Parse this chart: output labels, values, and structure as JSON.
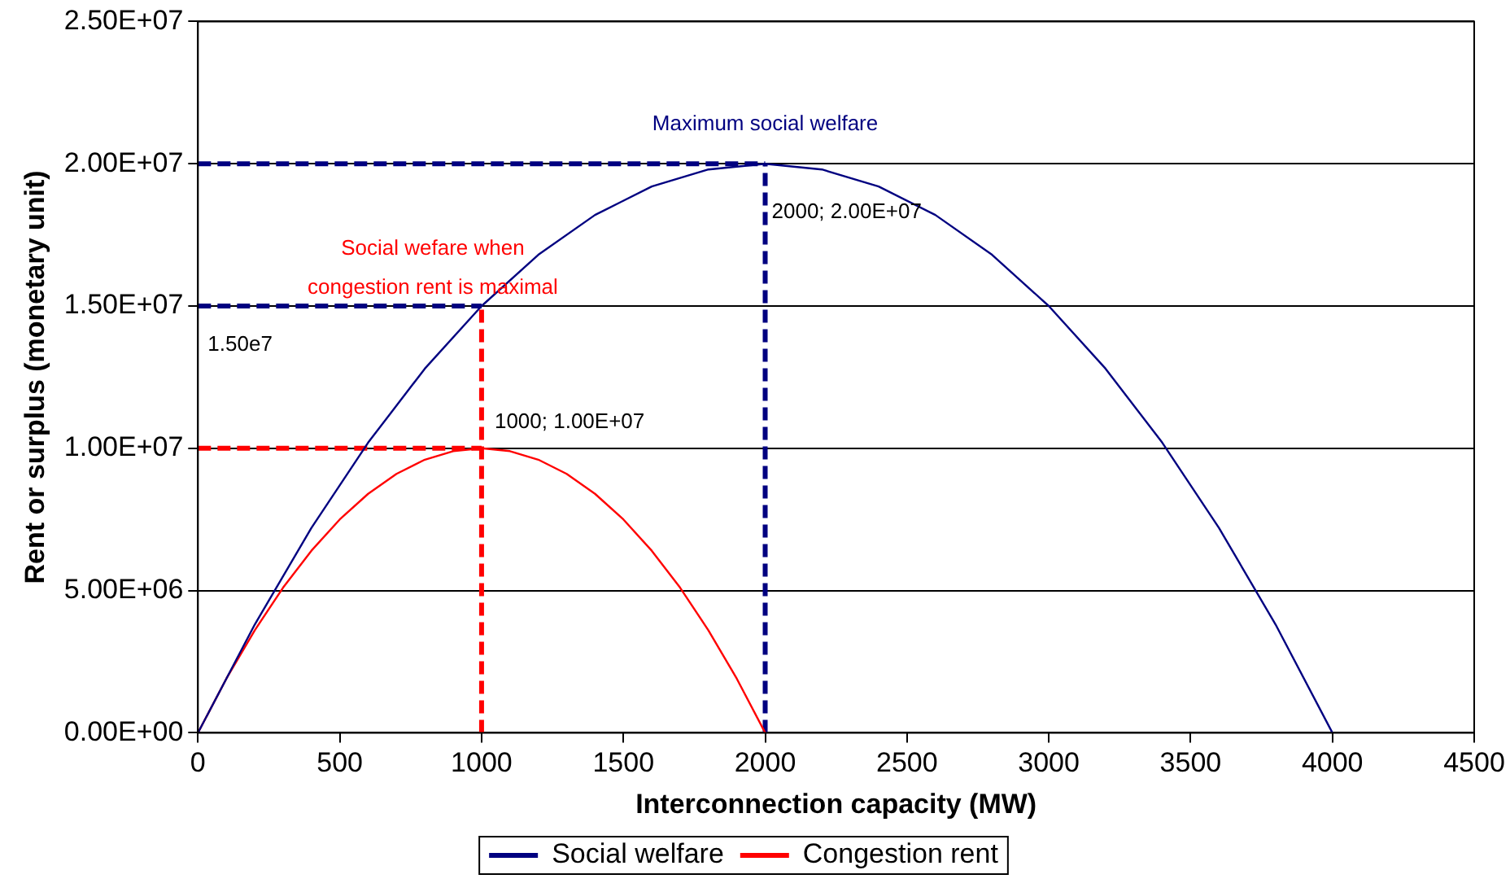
{
  "chart_data": {
    "type": "line",
    "xlabel": "Interconnection capacity (MW)",
    "ylabel": "Rent or surplus (monetary unit)",
    "xlim": [
      0,
      4500
    ],
    "xticks": [
      0,
      500,
      1000,
      1500,
      2000,
      2500,
      3000,
      3500,
      4000,
      4500
    ],
    "ylim": [
      0,
      25000000
    ],
    "yticks": [
      {
        "value": 0,
        "label": "0.00E+00"
      },
      {
        "value": 5000000,
        "label": "5.00E+06"
      },
      {
        "value": 10000000,
        "label": "1.00E+07"
      },
      {
        "value": 15000000,
        "label": "1.50E+07"
      },
      {
        "value": 20000000,
        "label": "2.00E+07"
      },
      {
        "value": 25000000,
        "label": "2.50E+07"
      }
    ],
    "grid": "y",
    "legend": "bottom",
    "marker": "none",
    "series": [
      {
        "name": "Social welfare",
        "color": "#000080",
        "x": [
          0,
          200,
          400,
          600,
          800,
          1000,
          1200,
          1400,
          1600,
          1800,
          2000,
          2200,
          2400,
          2600,
          2800,
          3000,
          3200,
          3400,
          3600,
          3800,
          4000
        ],
        "values": [
          0,
          3800000,
          7200000,
          10200000,
          12800000,
          15000000,
          16800000,
          18200000,
          19200000,
          19800000,
          20000000,
          19800000,
          19200000,
          18200000,
          16800000,
          15000000,
          12800000,
          10200000,
          7200000,
          3800000,
          0
        ]
      },
      {
        "name": "Congestion rent",
        "color": "#ff0000",
        "x": [
          0,
          100,
          200,
          300,
          400,
          500,
          600,
          700,
          800,
          900,
          1000,
          1100,
          1200,
          1300,
          1400,
          1500,
          1600,
          1700,
          1800,
          1900,
          2000
        ],
        "values": [
          0,
          1900000,
          3600000,
          5100000,
          6400000,
          7500000,
          8400000,
          9100000,
          9600000,
          9900000,
          10000000,
          9900000,
          9600000,
          9100000,
          8400000,
          7500000,
          6400000,
          5100000,
          3600000,
          1900000,
          0
        ]
      },
      {
        "color": "#000080",
        "line_style": "dashed",
        "x": [
          0,
          2000
        ],
        "values": [
          20000000,
          20000000
        ]
      },
      {
        "color": "#000080",
        "line_style": "dashed",
        "x": [
          2000,
          2000
        ],
        "values": [
          0,
          20000000
        ]
      },
      {
        "color": "#000080",
        "line_style": "dashed",
        "x": [
          0,
          1000
        ],
        "values": [
          15000000,
          15000000
        ]
      },
      {
        "color": "#ff0000",
        "line_style": "dashed",
        "x": [
          0,
          1000
        ],
        "values": [
          10000000,
          10000000
        ]
      },
      {
        "color": "#ff0000",
        "line_style": "dashed",
        "x": [
          1000,
          1000
        ],
        "values": [
          0,
          15000000
        ]
      }
    ],
    "annotations": [
      {
        "text": "Maximum social welfare",
        "x": 2000,
        "y": 20000000
      },
      {
        "text": "2000; 2.00E+07",
        "x": 2000,
        "y": 20000000
      },
      {
        "text": "Social wefare when congestion rent is maximal",
        "x": 1000,
        "y": 15000000
      },
      {
        "text": "1.50e7",
        "x": 0,
        "y": 15000000
      },
      {
        "text": "1000; 1.00E+07",
        "x": 1000,
        "y": 10000000
      }
    ]
  }
}
